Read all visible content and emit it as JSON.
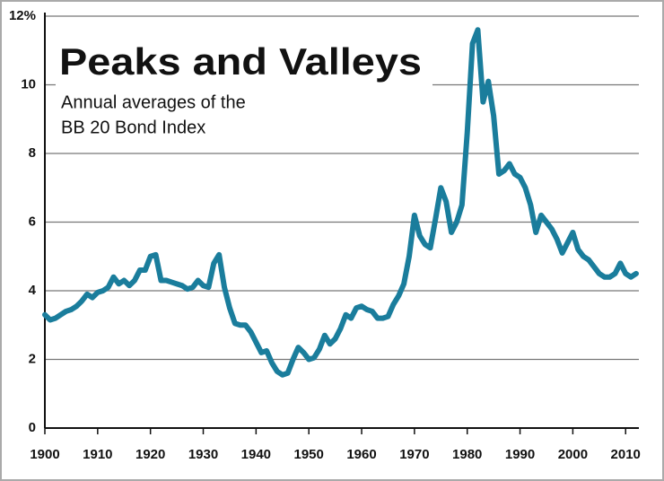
{
  "chart_data": {
    "type": "line",
    "title": "Peaks and Valleys",
    "subtitle": [
      "Annual averages of the",
      "BB 20 Bond Index"
    ],
    "x": [
      1900,
      1901,
      1902,
      1903,
      1904,
      1905,
      1906,
      1907,
      1908,
      1909,
      1910,
      1911,
      1912,
      1913,
      1914,
      1915,
      1916,
      1917,
      1918,
      1919,
      1920,
      1921,
      1922,
      1923,
      1924,
      1925,
      1926,
      1927,
      1928,
      1929,
      1930,
      1931,
      1932,
      1933,
      1934,
      1935,
      1936,
      1937,
      1938,
      1939,
      1940,
      1941,
      1942,
      1943,
      1944,
      1945,
      1946,
      1947,
      1948,
      1949,
      1950,
      1951,
      1952,
      1953,
      1954,
      1955,
      1956,
      1957,
      1958,
      1959,
      1960,
      1961,
      1962,
      1963,
      1964,
      1965,
      1966,
      1967,
      1968,
      1969,
      1970,
      1971,
      1972,
      1973,
      1974,
      1975,
      1976,
      1977,
      1978,
      1979,
      1980,
      1981,
      1982,
      1983,
      1984,
      1985,
      1986,
      1987,
      1988,
      1989,
      1990,
      1991,
      1992,
      1993,
      1994,
      1995,
      1996,
      1997,
      1998,
      1999,
      2000,
      2001,
      2002,
      2003,
      2004,
      2005,
      2006,
      2007,
      2008,
      2009,
      2010,
      2011,
      2012
    ],
    "series": [
      {
        "color": "#1a7d9c",
        "values": [
          3.3,
          3.15,
          3.2,
          3.3,
          3.4,
          3.45,
          3.55,
          3.7,
          3.9,
          3.8,
          3.95,
          4.0,
          4.1,
          4.4,
          4.2,
          4.3,
          4.15,
          4.3,
          4.6,
          4.6,
          5.0,
          5.05,
          4.3,
          4.3,
          4.25,
          4.2,
          4.15,
          4.05,
          4.1,
          4.3,
          4.15,
          4.1,
          4.8,
          5.05,
          4.1,
          3.5,
          3.05,
          3.0,
          3.0,
          2.8,
          2.5,
          2.2,
          2.25,
          1.9,
          1.65,
          1.55,
          1.6,
          2.0,
          2.35,
          2.2,
          2.0,
          2.05,
          2.3,
          2.7,
          2.45,
          2.6,
          2.9,
          3.3,
          3.2,
          3.5,
          3.55,
          3.45,
          3.4,
          3.2,
          3.2,
          3.25,
          3.6,
          3.85,
          4.2,
          5.0,
          6.2,
          5.6,
          5.35,
          5.25,
          6.1,
          7.0,
          6.6,
          5.7,
          6.0,
          6.5,
          8.6,
          11.2,
          11.6,
          9.5,
          10.1,
          9.1,
          7.4,
          7.5,
          7.7,
          7.4,
          7.3,
          7.0,
          6.5,
          5.7,
          6.2,
          6.0,
          5.8,
          5.5,
          5.1,
          5.4,
          5.7,
          5.2,
          5.0,
          4.9,
          4.7,
          4.5,
          4.4,
          4.4,
          4.5,
          4.8,
          4.5,
          4.4,
          4.5
        ]
      }
    ],
    "xlim": [
      1900,
      2012
    ],
    "xticks": [
      1900,
      1910,
      1920,
      1930,
      1940,
      1950,
      1960,
      1970,
      1980,
      1990,
      2000,
      2010
    ],
    "ylim": [
      0,
      12
    ],
    "yticks": [
      0,
      2,
      4,
      6,
      8,
      10,
      {
        "value": 12,
        "label": "12%"
      }
    ],
    "grid": true
  }
}
